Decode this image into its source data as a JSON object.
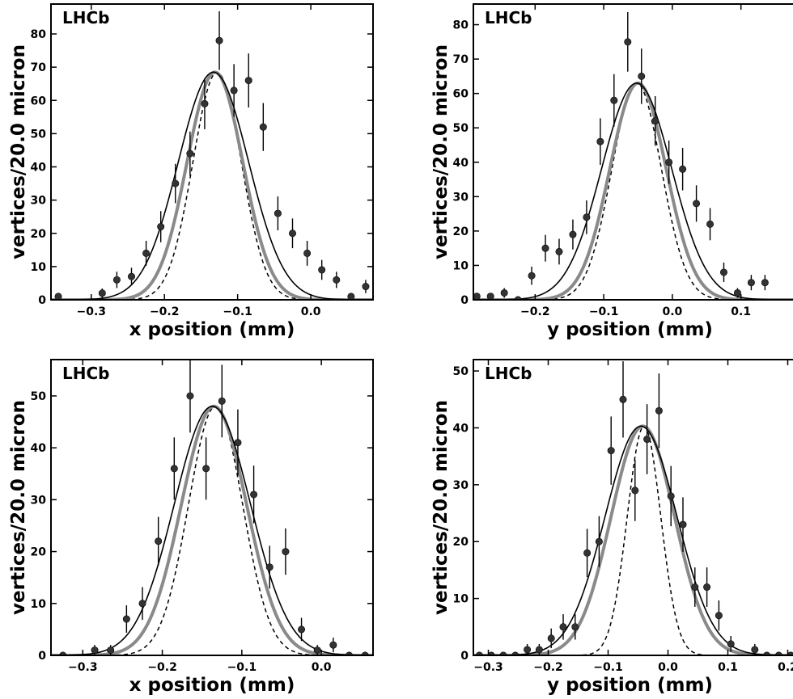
{
  "figure": {
    "label": "LHCb",
    "ylabel": "vertices/20.0 micron"
  },
  "chart_data": [
    {
      "type": "scatter",
      "xlabel": "x position (mm)",
      "ylabel": "vertices/20.0 micron",
      "xlim": [
        -0.355,
        0.085
      ],
      "ylim": [
        0,
        89
      ],
      "xticks": [
        -0.3,
        -0.2,
        -0.1,
        0.0
      ],
      "yticks": [
        0,
        10,
        20,
        30,
        40,
        50,
        60,
        70,
        80
      ],
      "xtick_labels": [
        "−0.3",
        "−0.2",
        "−0.1",
        "0.0"
      ],
      "points": [
        {
          "x": -0.345,
          "y": 1
        },
        {
          "x": -0.285,
          "y": 2
        },
        {
          "x": -0.265,
          "y": 6
        },
        {
          "x": -0.245,
          "y": 7
        },
        {
          "x": -0.225,
          "y": 14
        },
        {
          "x": -0.205,
          "y": 22
        },
        {
          "x": -0.185,
          "y": 35
        },
        {
          "x": -0.165,
          "y": 44
        },
        {
          "x": -0.145,
          "y": 59
        },
        {
          "x": -0.125,
          "y": 78
        },
        {
          "x": -0.105,
          "y": 63
        },
        {
          "x": -0.085,
          "y": 66
        },
        {
          "x": -0.065,
          "y": 52
        },
        {
          "x": -0.045,
          "y": 26
        },
        {
          "x": -0.025,
          "y": 20
        },
        {
          "x": -0.005,
          "y": 14
        },
        {
          "x": 0.015,
          "y": 9
        },
        {
          "x": 0.035,
          "y": 6
        },
        {
          "x": 0.055,
          "y": 1
        },
        {
          "x": 0.075,
          "y": 4
        }
      ],
      "curves": {
        "fit": {
          "mean": -0.133,
          "amplitude": 68.5,
          "sigma": 0.048
        },
        "gray": {
          "mean": -0.131,
          "amplitude": 68.5,
          "sigma": 0.038
        },
        "dashed": {
          "mean": -0.128,
          "amplitude": 68.5,
          "sigma": 0.033
        }
      },
      "label": "LHCb"
    },
    {
      "type": "scatter",
      "xlabel": "y position (mm)",
      "ylabel": "vertices/20.0 micron",
      "xlim": [
        -0.29,
        0.19
      ],
      "ylim": [
        0,
        86
      ],
      "xticks": [
        -0.2,
        -0.1,
        0.0,
        0.1
      ],
      "yticks": [
        0,
        10,
        20,
        30,
        40,
        50,
        60,
        70,
        80
      ],
      "xtick_labels": [
        "−0.2",
        "−0.1",
        "0.0",
        "0.1"
      ],
      "points": [
        {
          "x": -0.285,
          "y": 1
        },
        {
          "x": -0.265,
          "y": 1
        },
        {
          "x": -0.245,
          "y": 2
        },
        {
          "x": -0.225,
          "y": 0
        },
        {
          "x": -0.205,
          "y": 7
        },
        {
          "x": -0.185,
          "y": 15
        },
        {
          "x": -0.165,
          "y": 14
        },
        {
          "x": -0.145,
          "y": 19
        },
        {
          "x": -0.125,
          "y": 24
        },
        {
          "x": -0.105,
          "y": 46
        },
        {
          "x": -0.085,
          "y": 58
        },
        {
          "x": -0.065,
          "y": 75
        },
        {
          "x": -0.045,
          "y": 65
        },
        {
          "x": -0.025,
          "y": 52
        },
        {
          "x": -0.005,
          "y": 40
        },
        {
          "x": 0.015,
          "y": 38
        },
        {
          "x": 0.035,
          "y": 28
        },
        {
          "x": 0.055,
          "y": 22
        },
        {
          "x": 0.075,
          "y": 8
        },
        {
          "x": 0.095,
          "y": 2
        },
        {
          "x": 0.115,
          "y": 5
        },
        {
          "x": 0.135,
          "y": 5
        },
        {
          "x": 0.185,
          "y": 0
        }
      ],
      "curves": {
        "fit": {
          "mean": -0.052,
          "amplitude": 63,
          "sigma": 0.051
        },
        "gray": {
          "mean": -0.05,
          "amplitude": 63,
          "sigma": 0.041
        },
        "dashed": {
          "mean": -0.052,
          "amplitude": 63,
          "sigma": 0.036
        }
      },
      "label": "LHCb"
    },
    {
      "type": "scatter",
      "xlabel": "x position (mm)",
      "ylabel": "vertices/20.0 micron",
      "xlim": [
        -0.34,
        0.065
      ],
      "ylim": [
        0,
        57
      ],
      "xticks": [
        -0.3,
        -0.2,
        -0.1,
        0.0
      ],
      "yticks": [
        0,
        10,
        20,
        30,
        40,
        50
      ],
      "xtick_labels": [
        "−0.3",
        "−0.2",
        "−0.1",
        "0.0"
      ],
      "points": [
        {
          "x": -0.325,
          "y": 0
        },
        {
          "x": -0.285,
          "y": 1
        },
        {
          "x": -0.265,
          "y": 1
        },
        {
          "x": -0.245,
          "y": 7
        },
        {
          "x": -0.225,
          "y": 10
        },
        {
          "x": -0.205,
          "y": 22
        },
        {
          "x": -0.185,
          "y": 36
        },
        {
          "x": -0.165,
          "y": 50
        },
        {
          "x": -0.145,
          "y": 36
        },
        {
          "x": -0.125,
          "y": 49
        },
        {
          "x": -0.105,
          "y": 41
        },
        {
          "x": -0.085,
          "y": 31
        },
        {
          "x": -0.065,
          "y": 17
        },
        {
          "x": -0.045,
          "y": 20
        },
        {
          "x": -0.025,
          "y": 5
        },
        {
          "x": -0.005,
          "y": 1
        },
        {
          "x": 0.015,
          "y": 2
        },
        {
          "x": 0.035,
          "y": 0
        },
        {
          "x": 0.055,
          "y": 0
        }
      ],
      "curves": {
        "fit": {
          "mean": -0.137,
          "amplitude": 48,
          "sigma": 0.048
        },
        "gray": {
          "mean": -0.135,
          "amplitude": 48,
          "sigma": 0.041
        },
        "dashed": {
          "mean": -0.133,
          "amplitude": 48,
          "sigma": 0.034
        }
      },
      "label": "LHCb"
    },
    {
      "type": "scatter",
      "xlabel": "y position (mm)",
      "ylabel": "vertices/20.0 micron",
      "xlim": [
        -0.325,
        0.225
      ],
      "ylim": [
        0,
        52
      ],
      "xticks": [
        -0.3,
        -0.2,
        -0.1,
        0.0,
        0.1,
        0.2
      ],
      "yticks": [
        0,
        10,
        20,
        30,
        40,
        50
      ],
      "xtick_labels": [
        "−0.3",
        "−0.2",
        "−0.1",
        "0.0",
        "0.1",
        "0.2"
      ],
      "points": [
        {
          "x": -0.315,
          "y": 0
        },
        {
          "x": -0.295,
          "y": 0
        },
        {
          "x": -0.275,
          "y": 0
        },
        {
          "x": -0.255,
          "y": 0
        },
        {
          "x": -0.235,
          "y": 1
        },
        {
          "x": -0.215,
          "y": 1
        },
        {
          "x": -0.195,
          "y": 3
        },
        {
          "x": -0.175,
          "y": 5
        },
        {
          "x": -0.155,
          "y": 5
        },
        {
          "x": -0.135,
          "y": 18
        },
        {
          "x": -0.115,
          "y": 20
        },
        {
          "x": -0.095,
          "y": 36
        },
        {
          "x": -0.075,
          "y": 45
        },
        {
          "x": -0.055,
          "y": 29
        },
        {
          "x": -0.035,
          "y": 38
        },
        {
          "x": -0.015,
          "y": 43
        },
        {
          "x": 0.005,
          "y": 28
        },
        {
          "x": 0.025,
          "y": 23
        },
        {
          "x": 0.045,
          "y": 12
        },
        {
          "x": 0.065,
          "y": 12
        },
        {
          "x": 0.085,
          "y": 7
        },
        {
          "x": 0.105,
          "y": 2
        },
        {
          "x": 0.145,
          "y": 1
        },
        {
          "x": 0.165,
          "y": 0
        },
        {
          "x": 0.185,
          "y": 0
        },
        {
          "x": 0.205,
          "y": 0
        },
        {
          "x": 0.225,
          "y": 0
        }
      ],
      "curves": {
        "fit": {
          "mean": -0.045,
          "amplitude": 40.3,
          "sigma": 0.06
        },
        "gray": {
          "mean": -0.042,
          "amplitude": 40.3,
          "sigma": 0.053
        },
        "dashed": {
          "mean": -0.04,
          "amplitude": 40.3,
          "sigma": 0.028
        }
      },
      "label": "LHCb"
    }
  ]
}
